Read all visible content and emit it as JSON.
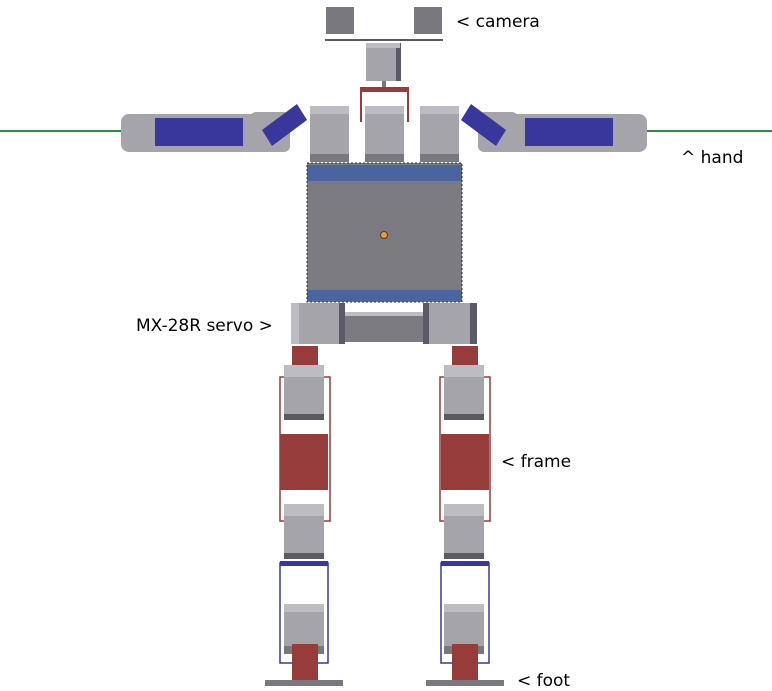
{
  "labels": {
    "camera": "< camera",
    "hand": "^ hand",
    "servo": "MX-28R servo >",
    "frame": "< frame",
    "foot": "< foot"
  },
  "colors": {
    "servo_light": "#a4a4aa",
    "servo_dark": "#78787e",
    "servo_edge": "#5a5a60",
    "frame_red": "#963c3a",
    "arm_blue": "#38389c",
    "torso_band": "#4a64a0",
    "torso_body": "#7a7a80",
    "ground_line": "#2e8b3e",
    "torso_marker": "#e3a040"
  }
}
